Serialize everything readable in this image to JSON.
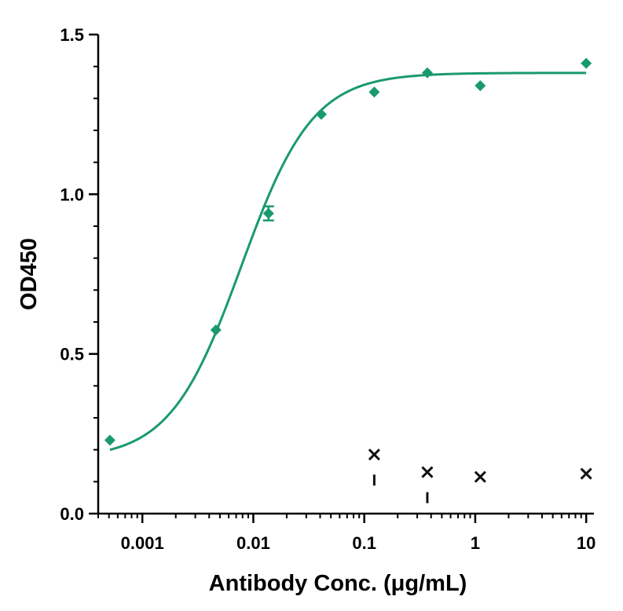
{
  "chart_data": {
    "type": "scatter",
    "title": "",
    "xlabel": "Antibody Conc. (μg/mL)",
    "ylabel": "OD450",
    "xscale": "log",
    "xlim": [
      0.0004,
      11
    ],
    "ylim": [
      0,
      1.5
    ],
    "xticks": [
      {
        "value": 0.001,
        "label": "0.001"
      },
      {
        "value": 0.01,
        "label": "0.01"
      },
      {
        "value": 0.1,
        "label": "0.1"
      },
      {
        "value": 1,
        "label": "1"
      },
      {
        "value": 10,
        "label": "10"
      }
    ],
    "yticks": [
      {
        "value": 0,
        "label": "0.0"
      },
      {
        "value": 0.5,
        "label": "0.5"
      },
      {
        "value": 1.0,
        "label": "1.0"
      },
      {
        "value": 1.5,
        "label": "1.5"
      }
    ],
    "grid": false,
    "colors": {
      "series": "#1a9a6c",
      "control": "#111111"
    },
    "series": [
      {
        "marker": "diamond",
        "color": "#1a9a6c",
        "points": [
          {
            "x": 0.00051,
            "y": 0.23
          },
          {
            "x": 0.0046,
            "y": 0.575
          },
          {
            "x": 0.0137,
            "y": 0.94,
            "err": 0.022
          },
          {
            "x": 0.041,
            "y": 1.25
          },
          {
            "x": 0.123,
            "y": 1.32
          },
          {
            "x": 0.37,
            "y": 1.38
          },
          {
            "x": 1.11,
            "y": 1.34
          },
          {
            "x": 10,
            "y": 1.41
          }
        ],
        "fit": {
          "bottom": 0.17,
          "top": 1.38,
          "ec50": 0.0078,
          "hill": 1.35
        }
      },
      {
        "marker": "cross",
        "color": "#111111",
        "points": [
          {
            "x": 0.123,
            "y": 0.185,
            "low": 0.105
          },
          {
            "x": 0.37,
            "y": 0.13,
            "low": 0.05
          },
          {
            "x": 1.11,
            "y": 0.115
          },
          {
            "x": 10,
            "y": 0.125
          }
        ]
      }
    ]
  }
}
